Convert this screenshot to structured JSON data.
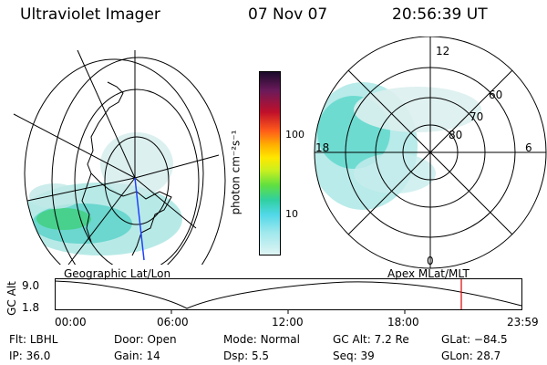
{
  "header": {
    "instrument": "Ultraviolet Imager",
    "date": "07 Nov 07",
    "time": "20:56:39 UT"
  },
  "geo_panel": {
    "caption": "Geographic Lat/Lon"
  },
  "apex_panel": {
    "caption": "Apex  MLat/MLT",
    "mlt_labels": {
      "top": "12",
      "bottom": "0",
      "left": "18",
      "right": "6"
    },
    "lat_labels": [
      "60",
      "70",
      "80"
    ]
  },
  "colorbar": {
    "unit_label": "photon cm⁻²s⁻¹",
    "ticks": [
      "100",
      "10"
    ]
  },
  "gc_alt_plot": {
    "ylabel": "GC Alt",
    "y_ticks": [
      "9.0",
      "1.8"
    ],
    "x_ticks": [
      "00:00",
      "06:00",
      "12:00",
      "18:00",
      "23:59"
    ],
    "current_time_marker": "20:56",
    "marker_color": "#e00000"
  },
  "status": {
    "row1": [
      {
        "key": "Flt:",
        "value": "LBHL"
      },
      {
        "key": "Door:",
        "value": "Open"
      },
      {
        "key": "Mode:",
        "value": "Normal"
      },
      {
        "key": "GC Alt:",
        "value": "7.2 Re"
      },
      {
        "key": "GLat:",
        "value": "−84.5"
      }
    ],
    "row2": [
      {
        "key": "IP:",
        "value": "36.0"
      },
      {
        "key": "Gain:",
        "value": "14"
      },
      {
        "key": "Dsp:",
        "value": "5.5"
      },
      {
        "key": "Seq:",
        "value": "39"
      },
      {
        "key": "GLon:",
        "value": "28.7"
      }
    ]
  }
}
